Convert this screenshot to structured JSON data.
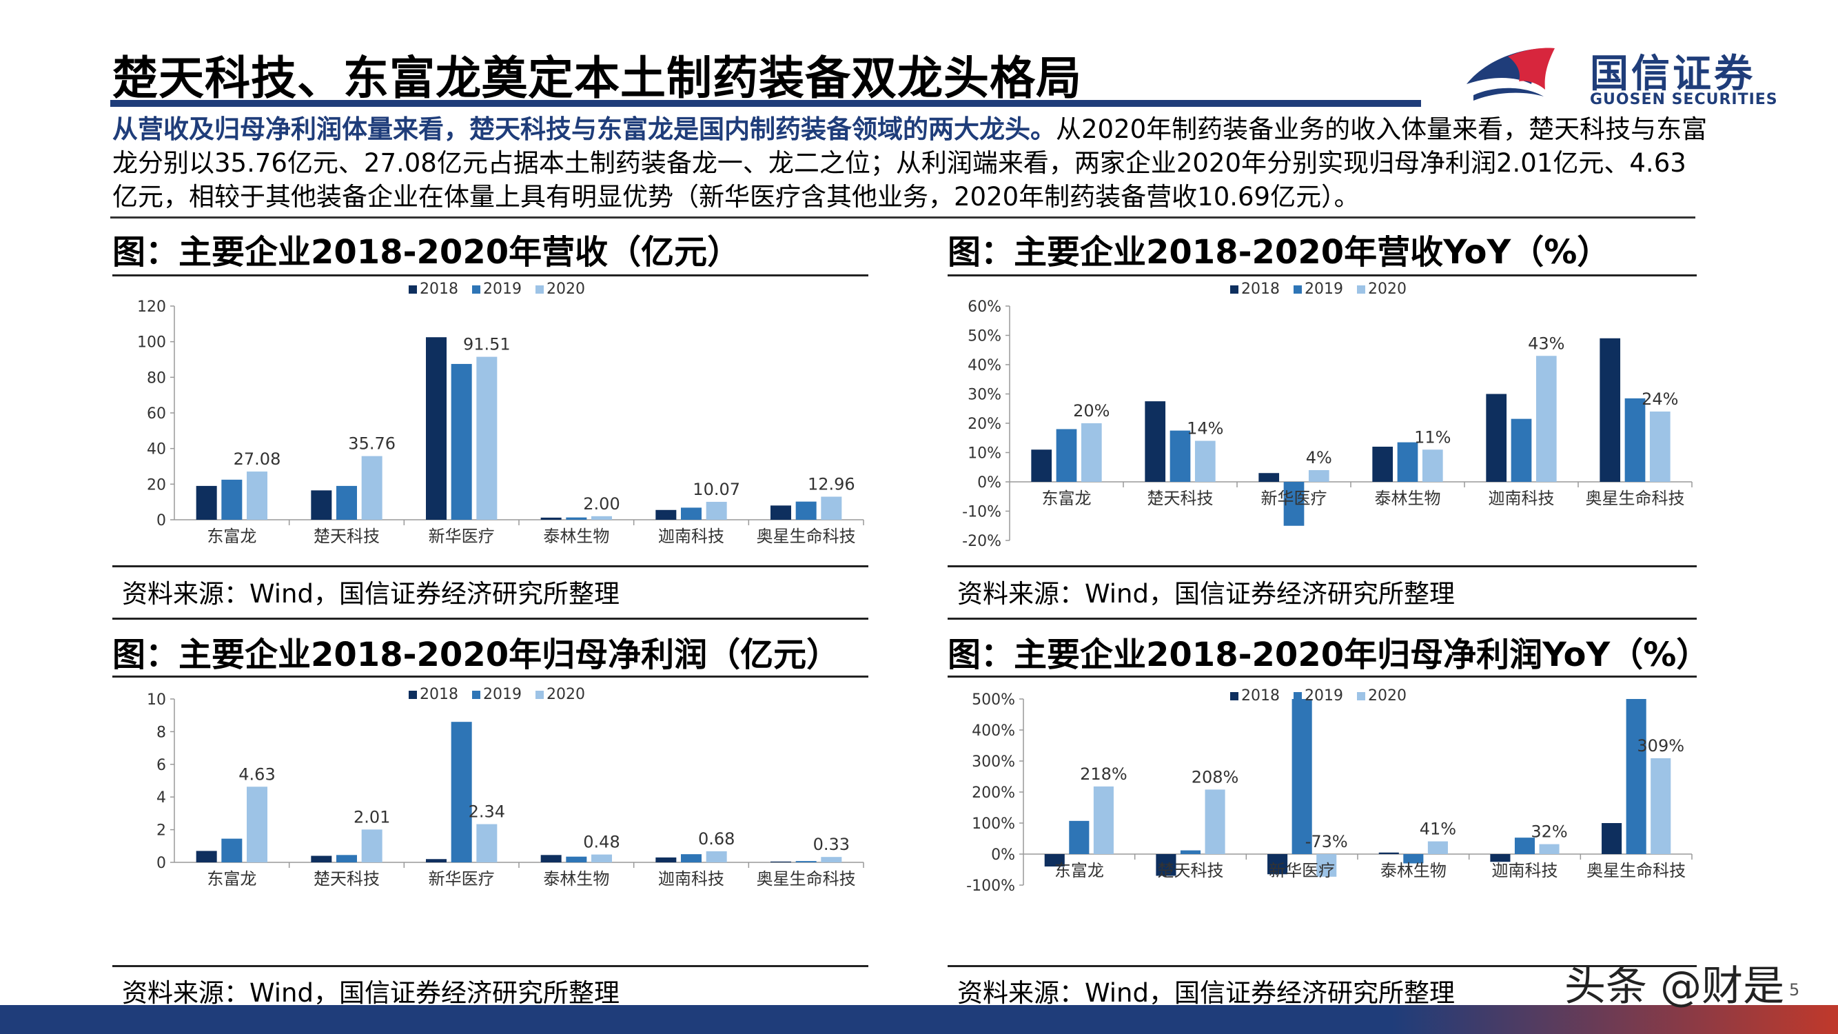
{
  "page": {
    "title": "楚天科技、东富龙奠定本土制药装备双龙头格局",
    "logo_cn": "国信证券",
    "logo_en": "GUOSEN SECURITIES",
    "intro_highlight": "从营收及归母净利润体量来看，楚天科技与东富龙是国内制药装备领域的两大龙头。",
    "intro_rest": "从2020年制药装备业务的收入体量来看，楚天科技与东富龙分别以35.76亿元、27.08亿元占据本土制药装备龙一、龙二之位；从利润端来看，两家企业2020年分别实现归母净利润2.01亿元、4.63亿元，相较于其他装备企业在体量上具有明显优势（新华医疗含其他业务，2020年制药装备营收10.69亿元）。",
    "watermark": "头条 @财是",
    "page_number": "5",
    "colors": {
      "brand": "#1f3d7a",
      "s2018": "#0e2f5e",
      "s2019": "#2e75b6",
      "s2020": "#9dc3e6"
    }
  },
  "panels": [
    {
      "title": "图：主要企业2018-2020年营收（亿元）",
      "source": "资料来源：Wind，国信证券经济研究所整理"
    },
    {
      "title": "图：主要企业2018-2020年营收YoY（%）",
      "source": "资料来源：Wind，国信证券经济研究所整理"
    },
    {
      "title": "图：主要企业2018-2020年归母净利润（亿元）",
      "source": "资料来源：Wind，国信证券经济研究所整理"
    },
    {
      "title": "图：主要企业2018-2020年归母净利润YoY（%）",
      "source": "资料来源：Wind，国信证券经济研究所整理"
    }
  ],
  "chart_data": [
    {
      "type": "bar",
      "categories": [
        "东富龙",
        "楚天科技",
        "新华医疗",
        "泰林生物",
        "迦南科技",
        "奥星生命科技"
      ],
      "series": [
        {
          "name": "2018",
          "values": [
            19,
            16.5,
            102.5,
            1.2,
            5.5,
            8
          ]
        },
        {
          "name": "2019",
          "values": [
            22.5,
            19,
            87.5,
            1.3,
            6.8,
            10.2
          ]
        },
        {
          "name": "2020",
          "values": [
            27.08,
            35.76,
            91.51,
            2.0,
            10.07,
            12.96
          ]
        }
      ],
      "data_labels": [
        "27.08",
        "35.76",
        "91.51",
        "2.00",
        "10.07",
        "12.96"
      ],
      "ylim": [
        0,
        120
      ],
      "yticks": [
        "0",
        "20",
        "40",
        "60",
        "80",
        "100",
        "120"
      ],
      "legend": "top-center"
    },
    {
      "type": "bar",
      "categories": [
        "东富龙",
        "楚天科技",
        "新华医疗",
        "泰林生物",
        "迦南科技",
        "奥星生命科技"
      ],
      "series": [
        {
          "name": "2018",
          "values": [
            11,
            27.5,
            3,
            12,
            30,
            49
          ]
        },
        {
          "name": "2019",
          "values": [
            18,
            17.5,
            -15,
            13.5,
            21.5,
            28.5
          ]
        },
        {
          "name": "2020",
          "values": [
            20,
            14,
            4,
            11,
            43,
            24
          ]
        }
      ],
      "data_labels": [
        "20%",
        "14%",
        "4%",
        "11%",
        "43%",
        "24%"
      ],
      "ylim": [
        -20,
        60
      ],
      "yticks": [
        "-20%",
        "-10%",
        "0%",
        "10%",
        "20%",
        "30%",
        "40%",
        "50%",
        "60%"
      ],
      "legend": "top-center"
    },
    {
      "type": "bar",
      "categories": [
        "东富龙",
        "楚天科技",
        "新华医疗",
        "泰林生物",
        "迦南科技",
        "奥星生命科技"
      ],
      "series": [
        {
          "name": "2018",
          "values": [
            0.7,
            0.4,
            0.2,
            0.45,
            0.3,
            0.05
          ]
        },
        {
          "name": "2019",
          "values": [
            1.45,
            0.45,
            8.6,
            0.35,
            0.5,
            0.08
          ]
        },
        {
          "name": "2020",
          "values": [
            4.63,
            2.01,
            2.34,
            0.48,
            0.68,
            0.33
          ]
        }
      ],
      "data_labels": [
        "4.63",
        "2.01",
        "2.34",
        "0.48",
        "0.68",
        "0.33"
      ],
      "ylim": [
        0,
        10
      ],
      "yticks": [
        "0",
        "2",
        "4",
        "6",
        "8",
        "10"
      ],
      "legend": "top-center"
    },
    {
      "type": "bar",
      "categories": [
        "东富龙",
        "楚天科技",
        "新华医疗",
        "泰林生物",
        "迦南科技",
        "奥星生命科技"
      ],
      "series": [
        {
          "name": "2018",
          "values": [
            -40,
            -70,
            -65,
            5,
            -25,
            100
          ]
        },
        {
          "name": "2019",
          "values": [
            107,
            12,
            500,
            -30,
            53,
            500
          ]
        },
        {
          "name": "2020",
          "values": [
            218,
            208,
            -73,
            41,
            32,
            309
          ]
        }
      ],
      "data_labels": [
        "218%",
        "208%",
        "-73%",
        "41%",
        "32%",
        "309%"
      ],
      "ylim": [
        -100,
        500
      ],
      "yticks": [
        "-100%",
        "0%",
        "100%",
        "200%",
        "300%",
        "400%",
        "500%"
      ],
      "legend": "top-center"
    }
  ]
}
